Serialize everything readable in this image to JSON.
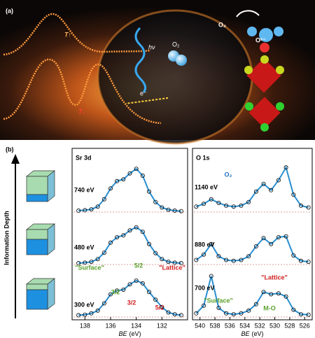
{
  "panel_a": {
    "label": "(a)",
    "temp_high": "T↑",
    "temp_low": "T↓",
    "photon": "hν",
    "gas": "O₂",
    "gas_big": "O₂",
    "oxygen_ion": "O²⁻",
    "electron": "e⁻"
  },
  "panel_b": {
    "label": "(b)",
    "depth_label": "Information Depth"
  },
  "chart_data": [
    {
      "type": "line",
      "title": "Sr 3d",
      "xlabel_var": "BE",
      "xlabel_unit": "(eV)",
      "xlim": [
        139,
        130
      ],
      "xticks": [
        138,
        136,
        134,
        132
      ],
      "ylim": [
        0,
        100
      ],
      "x": [
        138.5,
        138,
        137.5,
        137,
        136.5,
        136,
        135.5,
        135,
        134.5,
        134,
        133.5,
        133,
        132.5,
        132,
        131.5,
        131,
        130.5
      ],
      "series": [
        {
          "name": "740 eV",
          "color": "#2a8fd0",
          "values": [
            3,
            4,
            6,
            12,
            28,
            52,
            68,
            72,
            85,
            95,
            80,
            45,
            22,
            10,
            5,
            3,
            2
          ]
        },
        {
          "name": "480 eV",
          "color": "#2a8fd0",
          "values": [
            3,
            4,
            6,
            12,
            26,
            48,
            60,
            64,
            75,
            82,
            72,
            45,
            25,
            12,
            6,
            4,
            3
          ]
        },
        {
          "name": "300 eV",
          "color": "#2a8fd0",
          "values": [
            4,
            5,
            8,
            14,
            30,
            50,
            58,
            60,
            72,
            80,
            74,
            55,
            38,
            22,
            10,
            6,
            4
          ]
        }
      ],
      "annotations": [
        "\"Surface\"",
        "\"Lattice\"",
        "3/2",
        "5/2",
        "3/2",
        "5/2"
      ]
    },
    {
      "type": "line",
      "title": "O 1s",
      "xlabel_var": "BE",
      "xlabel_unit": "(eV)",
      "xlim": [
        541,
        525
      ],
      "xticks": [
        540,
        538,
        536,
        534,
        532,
        530,
        528,
        526
      ],
      "ylim": [
        0,
        100
      ],
      "x": [
        540.5,
        539.5,
        538.5,
        537.5,
        536.5,
        535.5,
        534.5,
        533.5,
        532.5,
        531.5,
        530.5,
        529.5,
        528.5,
        527.5,
        526.5,
        525.5
      ],
      "series": [
        {
          "name": "1140 eV",
          "color": "#2a8fd0",
          "values": [
            12,
            18,
            28,
            20,
            14,
            12,
            14,
            22,
            45,
            62,
            48,
            70,
            98,
            38,
            14,
            10
          ]
        },
        {
          "name": "880 eV",
          "color": "#2a8fd0",
          "values": [
            10,
            22,
            45,
            18,
            10,
            8,
            10,
            18,
            40,
            58,
            45,
            60,
            62,
            20,
            8,
            6
          ]
        },
        {
          "name": "700 eV",
          "color": "#2a8fd0",
          "values": [
            8,
            25,
            90,
            20,
            8,
            6,
            8,
            14,
            28,
            55,
            50,
            52,
            45,
            16,
            6,
            5
          ]
        }
      ],
      "annotations": [
        "\"Surface\"",
        "\"Lattice\"",
        "M-O",
        "O₂"
      ]
    }
  ]
}
